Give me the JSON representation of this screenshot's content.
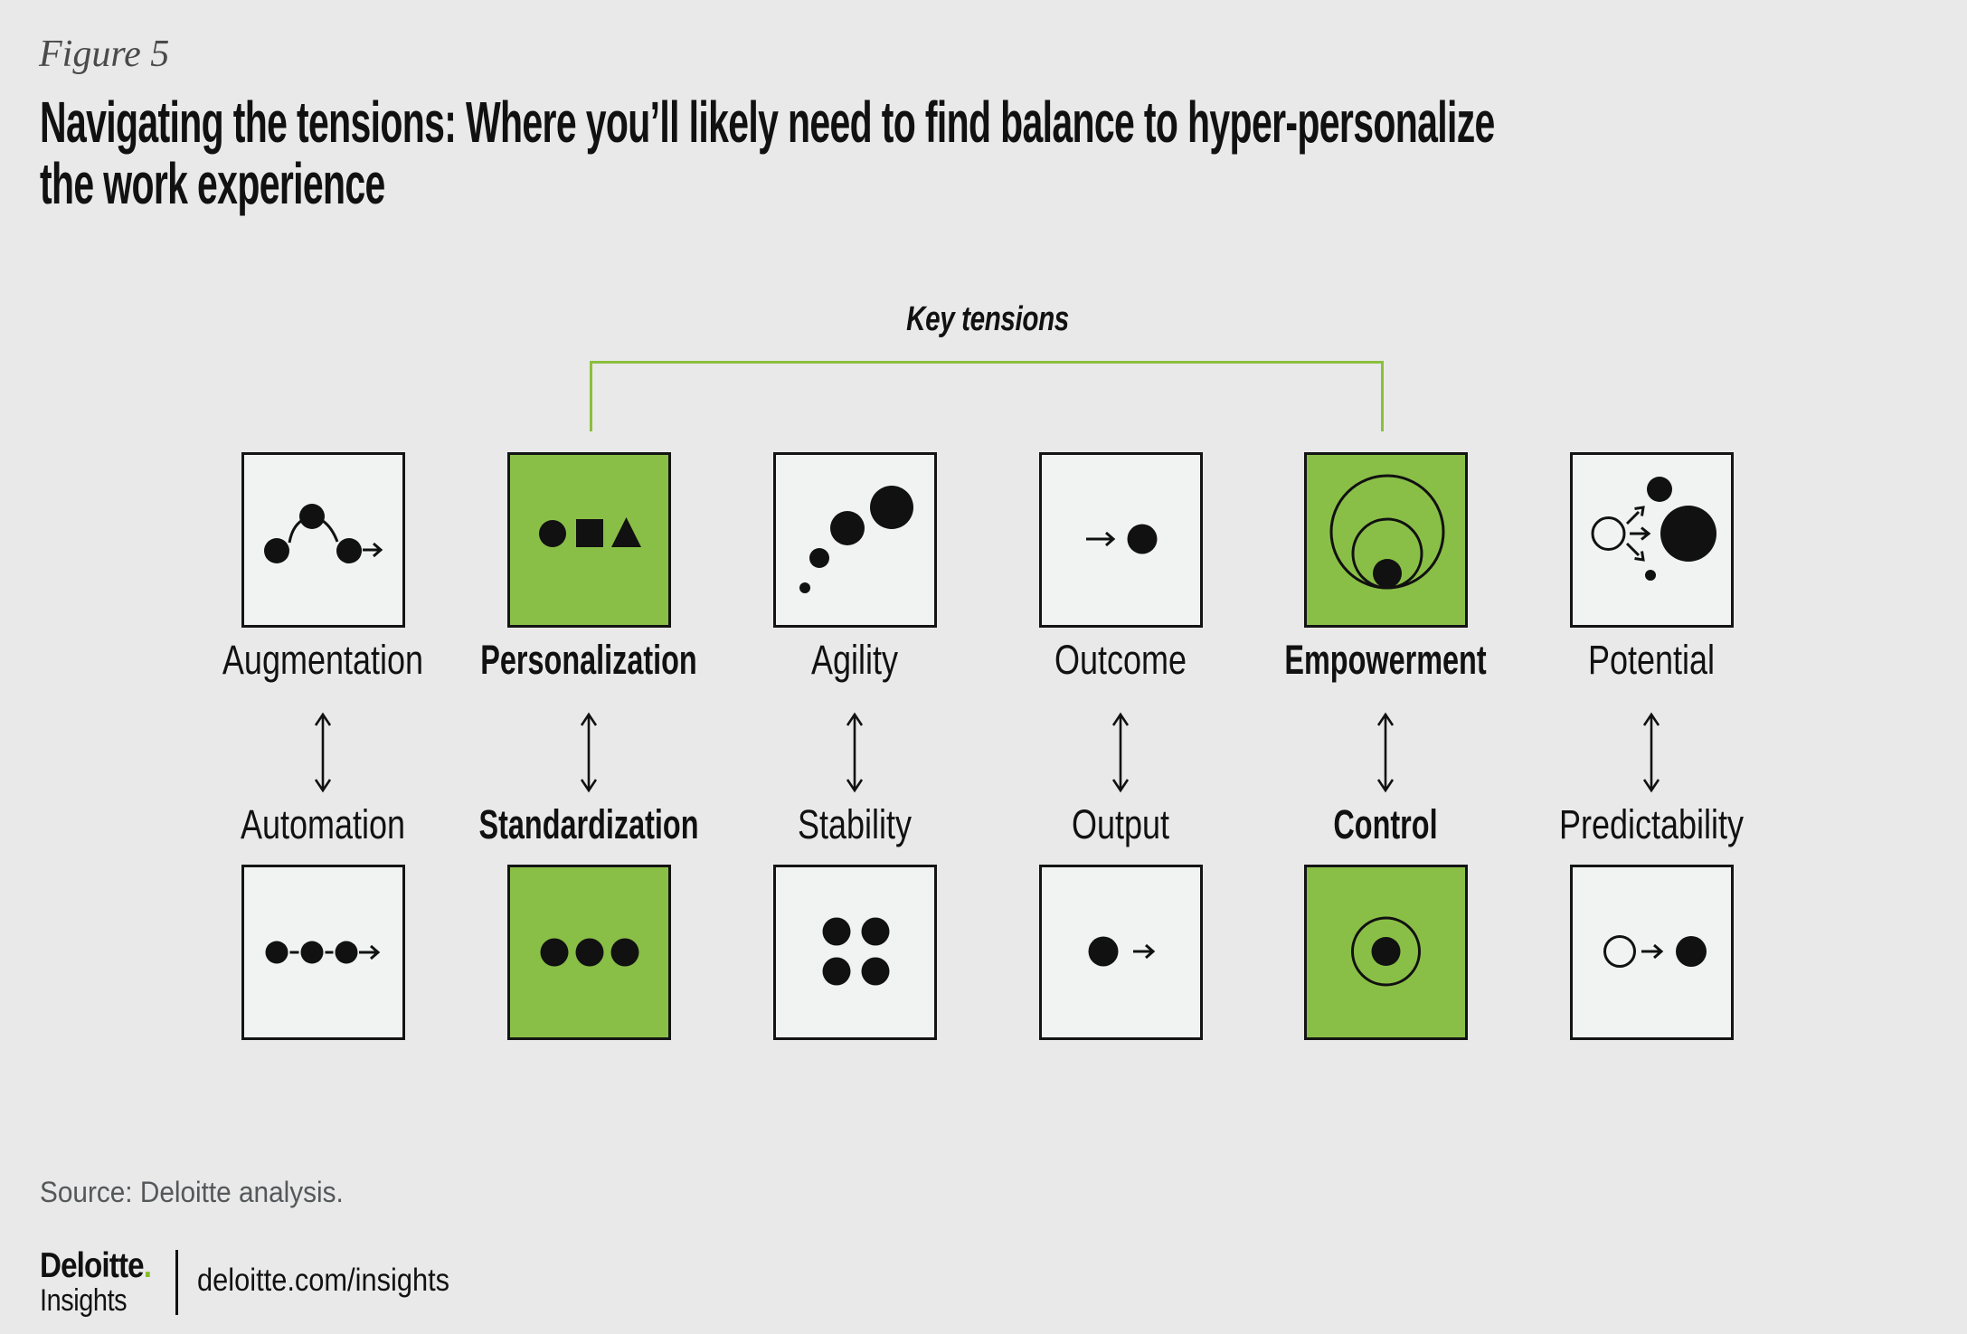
{
  "figure": {
    "label": "Figure 5",
    "title_lines": [
      "Navigating the tensions: Where you’ll likely need to find balance to hyper-personalize",
      "the work experience"
    ]
  },
  "key_tensions": {
    "label": "Key tensions"
  },
  "pairs": [
    {
      "top": {
        "label": "Augmentation",
        "bold": false,
        "highlight": false,
        "icon": "augmentation-branch-icon"
      },
      "bottom": {
        "label": "Automation",
        "bold": false,
        "highlight": false,
        "icon": "automation-sequence-icon"
      }
    },
    {
      "top": {
        "label": "Personalization",
        "bold": true,
        "highlight": true,
        "icon": "personalization-shapes-icon"
      },
      "bottom": {
        "label": "Standardization",
        "bold": true,
        "highlight": true,
        "icon": "standardization-dots-icon"
      }
    },
    {
      "top": {
        "label": "Agility",
        "bold": false,
        "highlight": false,
        "icon": "agility-growth-icon"
      },
      "bottom": {
        "label": "Stability",
        "bold": false,
        "highlight": false,
        "icon": "stability-grid-icon"
      }
    },
    {
      "top": {
        "label": "Outcome",
        "bold": false,
        "highlight": false,
        "icon": "outcome-arrow-circle-icon"
      },
      "bottom": {
        "label": "Output",
        "bold": false,
        "highlight": false,
        "icon": "output-circle-arrow-icon"
      }
    },
    {
      "top": {
        "label": "Empowerment",
        "bold": true,
        "highlight": true,
        "icon": "empowerment-circles-icon"
      },
      "bottom": {
        "label": "Control",
        "bold": true,
        "highlight": true,
        "icon": "control-bullseye-icon"
      }
    },
    {
      "top": {
        "label": "Potential",
        "bold": false,
        "highlight": false,
        "icon": "potential-branching-icon"
      },
      "bottom": {
        "label": "Predictability",
        "bold": false,
        "highlight": false,
        "icon": "predictability-transform-icon"
      }
    }
  ],
  "source": "Source: Deloitte analysis.",
  "footer": {
    "brand": "Deloitte",
    "brand_dot": ".",
    "brand_sub": "Insights",
    "site": "deloitte.com/insights"
  },
  "colors": {
    "background": "#e8e9e8",
    "box_light": "#f1f2f2",
    "box_green": "#8abf47",
    "bracket_green": "#8cbf3f",
    "border": "#141414",
    "ink": "#111111",
    "text": "#111111",
    "muted": "#55585a",
    "figure_label": "#4a4a4a",
    "brand_green": "#86bc25"
  }
}
